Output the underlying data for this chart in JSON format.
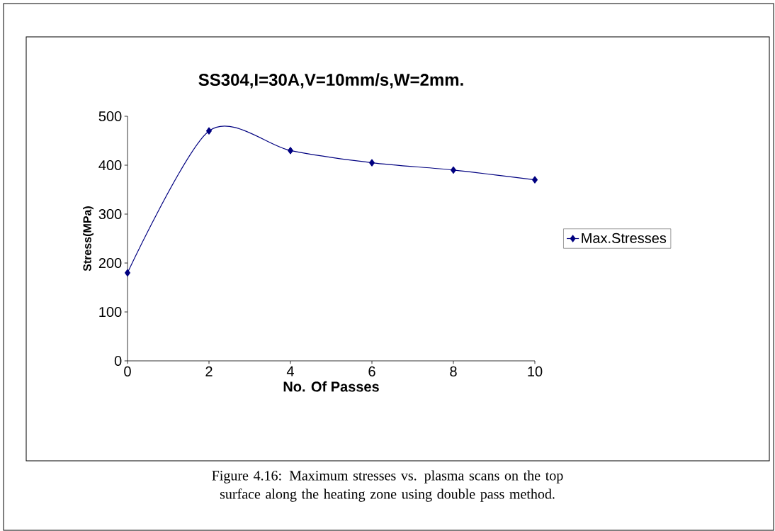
{
  "chart_data": {
    "type": "line",
    "title": "SS304,I=30A,V=10mm/s,W=2mm.",
    "xlabel": "No. Of Passes",
    "ylabel": "Stress(MPa)",
    "x": [
      0,
      2,
      4,
      6,
      8,
      10
    ],
    "series": [
      {
        "name": "Max.Stresses",
        "color": "#000080",
        "values": [
          180,
          470,
          430,
          405,
          390,
          370
        ]
      }
    ],
    "xlim": [
      0,
      10
    ],
    "ylim": [
      0,
      500
    ],
    "xticks": [
      0,
      2,
      4,
      6,
      8,
      10
    ],
    "yticks": [
      0,
      100,
      200,
      300,
      400,
      500
    ],
    "grid": false,
    "legend": "right",
    "marker": "diamond",
    "line_style": "solid",
    "annotations": [
      "Figure 4.16: Maximum stresses vs. plasma scans on the top surface along the heating zone using double pass method."
    ]
  }
}
